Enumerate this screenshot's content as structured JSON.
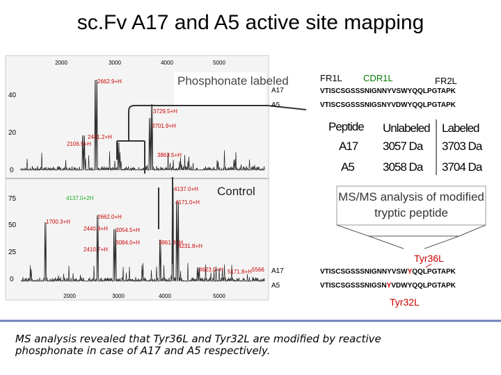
{
  "title": "sc.Fv A17 and A5 active site mapping",
  "top_spectrum": {
    "label": "Phosphonate labeled",
    "xticks": [
      "2000",
      "3000",
      "4000",
      "5000"
    ],
    "yticks": [
      "40",
      "20",
      "0"
    ],
    "peaks": [
      "2662.9+H",
      "2106.5+H",
      "2441.2+H",
      "3729.5+H",
      "3701.9+H",
      "3863.5+H"
    ]
  },
  "bottom_spectrum": {
    "label": "Control",
    "xticks": [
      "2000",
      "3000",
      "4000",
      "5000"
    ],
    "yticks": [
      "75",
      "50",
      "25",
      "0"
    ],
    "peaks": [
      "4137.0+H",
      "4171.0+H",
      "4137.0+2H",
      "1700.3+H",
      "2662.0+H",
      "2440.8+H",
      "3054.5+H",
      "3084.0+H",
      "2410.7+H",
      "3861.8+H",
      "4231.8+H",
      "4623.5+H",
      "5171.8+H",
      "5566"
    ]
  },
  "regions": [
    "FR1L",
    "CDR1L",
    "FR2L"
  ],
  "top_sequences": [
    {
      "name": "A17",
      "sequence": "VTISCSGSSSNIGNNYVSWYQQLPGTAPK"
    },
    {
      "name": "A5",
      "sequence": "VTISCSGSSSNIGSNYVDWYQQLPGTAPK"
    }
  ],
  "table": {
    "header": [
      "Peptide",
      "Unlabeled",
      "Labeled"
    ],
    "rows": [
      [
        "A17",
        "3057 Da",
        "3703 Da"
      ],
      [
        "A5",
        "3058 Da",
        "3704 Da"
      ]
    ]
  },
  "msms_box": "MS/MS analysis of modified tryptic peptide",
  "tyr36": "Tyr36L",
  "bottom_sequences": [
    {
      "name": "A17",
      "before": "VTISCSGSSSNIGNNYVSW",
      "site": "Y",
      "after": "QQLPGTAPK"
    },
    {
      "name": "A5",
      "before": "VTISCSGSSSNIGSN",
      "site": "Y",
      "after": "VDWYQQLPGTAPK"
    }
  ],
  "tyr32": "Tyr32L",
  "footer": "MS analysis revealed that Tyr36L and Tyr32L are modified by reactive phosphonate in case of  A17 and A5 respectively."
}
